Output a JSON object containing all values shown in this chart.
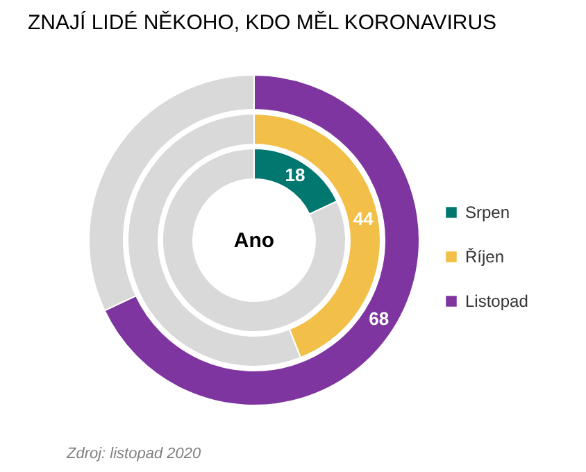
{
  "chart_data": {
    "type": "donut",
    "title": "ZNAJÍ LIDÉ NĚKOHO, KDO MĚL KORONAVIRUS",
    "categories": [
      null,
      null
    ],
    "series": [
      {
        "name": "Srpen",
        "values": [
          18,
          82
        ],
        "colors": [
          "#00776f",
          "#d9d9d9"
        ],
        "value_labels": [
          "18",
          null
        ]
      },
      {
        "name": "Říjen",
        "values": [
          44,
          56
        ],
        "colors": [
          "#f2bf48",
          "#d9d9d9"
        ],
        "value_labels": [
          "44",
          null
        ]
      },
      {
        "name": "Listopad",
        "values": [
          68,
          32
        ],
        "colors": [
          "#7f35a0",
          "#d9d9d9"
        ],
        "value_labels": [
          "68",
          null
        ]
      }
    ],
    "legend": "right",
    "annotations": [
      "Ano",
      "Zdroj: listopad 2020"
    ]
  }
}
